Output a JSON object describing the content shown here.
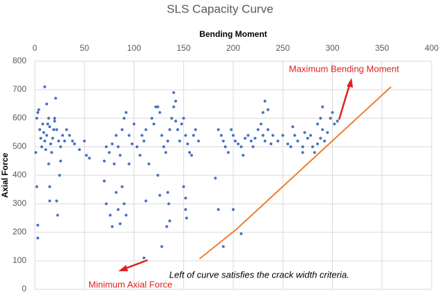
{
  "chart_data": {
    "type": "scatter",
    "title": "SLS Capacity Curve",
    "x_label": "Bending Moment",
    "y_label": "Axial Force",
    "xlim": [
      0,
      400
    ],
    "xticks": [
      0,
      50,
      100,
      150,
      200,
      250,
      300,
      350,
      400
    ],
    "ylim": [
      0,
      800
    ],
    "yticks": [
      0,
      100,
      200,
      300,
      400,
      500,
      600,
      700,
      800
    ],
    "grid": true,
    "annotations": [
      {
        "text": "Maximum Bending Moment",
        "color": "#e02020"
      },
      {
        "text": "Minimum Axial Force",
        "color": "#e02020"
      },
      {
        "text": "Left of curve satisfies the crack width criteria.",
        "color": "#000000"
      }
    ],
    "series": [
      {
        "type": "scatter",
        "color": "#4472c4",
        "x": [
          1,
          2,
          3,
          4,
          5,
          6,
          7,
          8,
          9,
          10,
          11,
          12,
          13,
          14,
          15,
          16,
          17,
          18,
          19,
          20,
          22,
          24,
          26,
          28,
          30,
          32,
          35,
          38,
          40,
          45,
          50,
          52,
          55,
          2,
          3,
          3,
          10,
          12,
          14,
          15,
          15,
          20,
          21,
          22,
          23,
          25,
          26,
          70,
          72,
          75,
          78,
          80,
          82,
          84,
          86,
          88,
          90,
          92,
          95,
          98,
          100,
          103,
          106,
          108,
          110,
          112,
          70,
          72,
          76,
          78,
          82,
          84,
          86,
          88,
          90,
          92,
          95,
          112,
          115,
          118,
          120,
          122,
          124,
          126,
          128,
          130,
          132,
          134,
          136,
          138,
          140,
          142,
          144,
          146,
          148,
          150,
          152,
          154,
          156,
          158,
          160,
          162,
          165,
          124,
          126,
          128,
          133,
          134,
          135,
          136,
          140,
          142,
          150,
          152,
          152,
          153,
          110,
          185,
          188,
          190,
          192,
          195,
          198,
          200,
          202,
          205,
          208,
          210,
          212,
          215,
          218,
          220,
          222,
          225,
          228,
          230,
          232,
          235,
          238,
          182,
          185,
          190,
          200,
          208,
          232,
          230,
          235,
          240,
          245,
          250,
          255,
          258,
          262,
          265,
          270,
          272,
          275,
          278,
          280,
          282,
          285,
          288,
          290,
          292,
          295,
          298,
          300,
          302,
          305,
          290,
          285,
          288,
          260,
          270
        ],
        "values": [
          480,
          600,
          620,
          630,
          560,
          530,
          500,
          580,
          550,
          520,
          490,
          540,
          580,
          600,
          570,
          510,
          480,
          530,
          560,
          590,
          560,
          520,
          500,
          540,
          520,
          560,
          540,
          520,
          510,
          490,
          520,
          470,
          460,
          360,
          225,
          180,
          710,
          650,
          440,
          360,
          310,
          600,
          670,
          310,
          260,
          400,
          450,
          450,
          500,
          480,
          510,
          440,
          540,
          500,
          470,
          560,
          600,
          620,
          540,
          510,
          580,
          500,
          470,
          540,
          520,
          560,
          380,
          300,
          260,
          220,
          340,
          280,
          230,
          360,
          300,
          260,
          440,
          310,
          440,
          600,
          580,
          640,
          640,
          620,
          540,
          500,
          480,
          520,
          560,
          600,
          640,
          590,
          560,
          520,
          580,
          600,
          540,
          510,
          480,
          470,
          540,
          560,
          520,
          400,
          330,
          150,
          220,
          340,
          300,
          240,
          690,
          660,
          360,
          320,
          280,
          250,
          110,
          560,
          540,
          520,
          500,
          480,
          560,
          540,
          520,
          510,
          500,
          470,
          530,
          540,
          520,
          500,
          530,
          560,
          580,
          540,
          520,
          560,
          510,
          390,
          280,
          150,
          280,
          195,
          660,
          620,
          630,
          540,
          520,
          540,
          510,
          500,
          540,
          520,
          500,
          550,
          530,
          540,
          500,
          480,
          510,
          530,
          560,
          520,
          550,
          600,
          620,
          580,
          590,
          640,
          580,
          600,
          570,
          480
        ]
      },
      {
        "type": "line",
        "color": "#ed7d31",
        "x": [
          166,
          203,
          359
        ],
        "values": [
          107,
          210,
          710
        ]
      }
    ]
  }
}
